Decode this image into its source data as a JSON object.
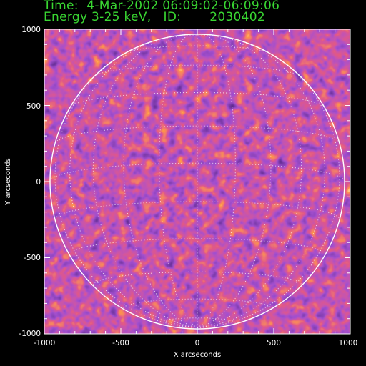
{
  "header": {
    "line1": "Time:  4-Mar-2002 06:09:02-06:09:06",
    "line2": "Energy 3-25 keV,   ID:       2030402",
    "text_color": "#39d632"
  },
  "plot": {
    "xlabel": "X arcseconds",
    "ylabel": "Y arcseconds",
    "x_ticks": [
      "-1000",
      "-500",
      "0",
      "500",
      "1000"
    ],
    "y_ticks": [
      "1000",
      "500",
      "0",
      "-500",
      "-1000"
    ],
    "x_range": [
      -1000,
      1000
    ],
    "y_range": [
      -1000,
      1000
    ],
    "disk_radius_arcsec": 965,
    "colormap": [
      "#000000",
      "#2a0a5a",
      "#5a1aa0",
      "#c01838",
      "#ff4a10",
      "#ffd070",
      "#ffffff"
    ],
    "frame_color": "#ffffff",
    "limb_color": "#ffffff",
    "grid": "dotted heliographic latitude/longitude grid"
  }
}
